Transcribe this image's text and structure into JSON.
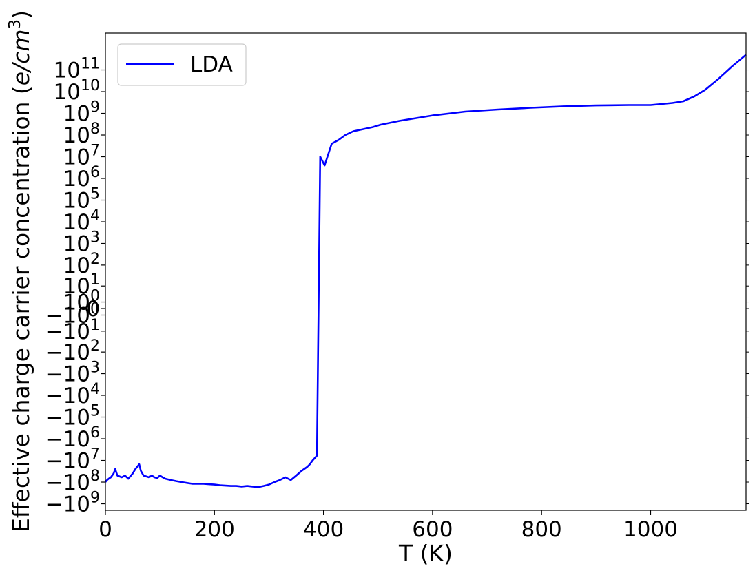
{
  "chart_data": {
    "type": "line",
    "xlabel": "T (K)",
    "ylabel": "Effective charge carrier concentration (e/cm3)",
    "ylabel_parts": {
      "prefix": "Effective charge carrier concentration (",
      "e": "e",
      "slash": "/",
      "cm": "cm",
      "exp": "3",
      "suffix": ")"
    },
    "xlim": [
      0,
      1175
    ],
    "y_scale": "symlog",
    "y_linthresh": 1,
    "ylim": [
      -2000000000,
      5000000000000
    ],
    "x_ticks": [
      {
        "value": 0,
        "label": "0"
      },
      {
        "value": 200,
        "label": "200"
      },
      {
        "value": 400,
        "label": "400"
      },
      {
        "value": 600,
        "label": "600"
      },
      {
        "value": 800,
        "label": "800"
      },
      {
        "value": 1000,
        "label": "1000"
      }
    ],
    "y_ticks": [
      {
        "value": 100000000000,
        "base": "10",
        "exp": "11"
      },
      {
        "value": 10000000000,
        "base": "10",
        "exp": "10"
      },
      {
        "value": 1000000000,
        "base": "10",
        "exp": "9"
      },
      {
        "value": 100000000,
        "base": "10",
        "exp": "8"
      },
      {
        "value": 10000000,
        "base": "10",
        "exp": "7"
      },
      {
        "value": 1000000,
        "base": "10",
        "exp": "6"
      },
      {
        "value": 100000,
        "base": "10",
        "exp": "5"
      },
      {
        "value": 10000,
        "base": "10",
        "exp": "4"
      },
      {
        "value": 1000,
        "base": "10",
        "exp": "3"
      },
      {
        "value": 100,
        "base": "10",
        "exp": "2"
      },
      {
        "value": 10,
        "base": "10",
        "exp": "1"
      },
      {
        "value": 1,
        "base": "10",
        "exp": "0"
      },
      {
        "value": 0,
        "base": "0",
        "exp": ""
      },
      {
        "value": -1,
        "base": "−10",
        "exp": "0"
      },
      {
        "value": -10,
        "base": "−10",
        "exp": "1"
      },
      {
        "value": -100,
        "base": "−10",
        "exp": "2"
      },
      {
        "value": -1000,
        "base": "−10",
        "exp": "3"
      },
      {
        "value": -10000,
        "base": "−10",
        "exp": "4"
      },
      {
        "value": -100000,
        "base": "−10",
        "exp": "5"
      },
      {
        "value": -1000000,
        "base": "−10",
        "exp": "6"
      },
      {
        "value": -10000000,
        "base": "−10",
        "exp": "7"
      },
      {
        "value": -100000000,
        "base": "−10",
        "exp": "8"
      },
      {
        "value": -1000000000,
        "base": "−10",
        "exp": "9"
      }
    ],
    "legend": {
      "location": "upper left"
    },
    "grid": false,
    "series": [
      {
        "name": "LDA",
        "color": "#0000ff",
        "x": [
          0,
          3,
          6,
          10,
          15,
          18,
          22,
          30,
          36,
          42,
          50,
          55,
          62,
          65,
          70,
          80,
          85,
          90,
          95,
          100,
          105,
          110,
          120,
          130,
          140,
          150,
          160,
          170,
          180,
          190,
          200,
          210,
          220,
          230,
          240,
          250,
          260,
          270,
          280,
          290,
          300,
          310,
          320,
          330,
          340,
          350,
          360,
          370,
          375,
          380,
          388,
          394,
          402,
          415,
          428,
          440,
          455,
          470,
          490,
          505,
          540,
          570,
          600,
          660,
          720,
          780,
          840,
          900,
          960,
          1000,
          1040,
          1060,
          1080,
          1100,
          1125,
          1150,
          1175
        ],
        "y": [
          -100000000,
          -80000000,
          -70000000,
          -60000000,
          -40000000,
          -25000000,
          -50000000,
          -60000000,
          -50000000,
          -70000000,
          -40000000,
          -25000000,
          -15000000,
          -30000000,
          -50000000,
          -60000000,
          -50000000,
          -60000000,
          -65000000,
          -50000000,
          -60000000,
          -70000000,
          -80000000,
          -90000000,
          -100000000,
          -110000000,
          -120000000,
          -120000000,
          -120000000,
          -125000000,
          -130000000,
          -140000000,
          -145000000,
          -150000000,
          -150000000,
          -160000000,
          -150000000,
          -160000000,
          -170000000,
          -150000000,
          -130000000,
          -100000000,
          -80000000,
          -60000000,
          -80000000,
          -50000000,
          -30000000,
          -20000000,
          -15000000,
          -10000000,
          -6000000,
          10000000,
          4000000,
          40000000,
          60000000,
          100000000,
          150000000,
          180000000,
          230000000,
          300000000,
          450000000,
          600000000,
          800000000,
          1200000000,
          1500000000,
          1800000000,
          2100000000,
          2300000000,
          2400000000,
          2400000000,
          3000000000,
          3600000000,
          6000000000,
          12000000000,
          40000000000,
          150000000000,
          500000000000
        ]
      }
    ]
  }
}
